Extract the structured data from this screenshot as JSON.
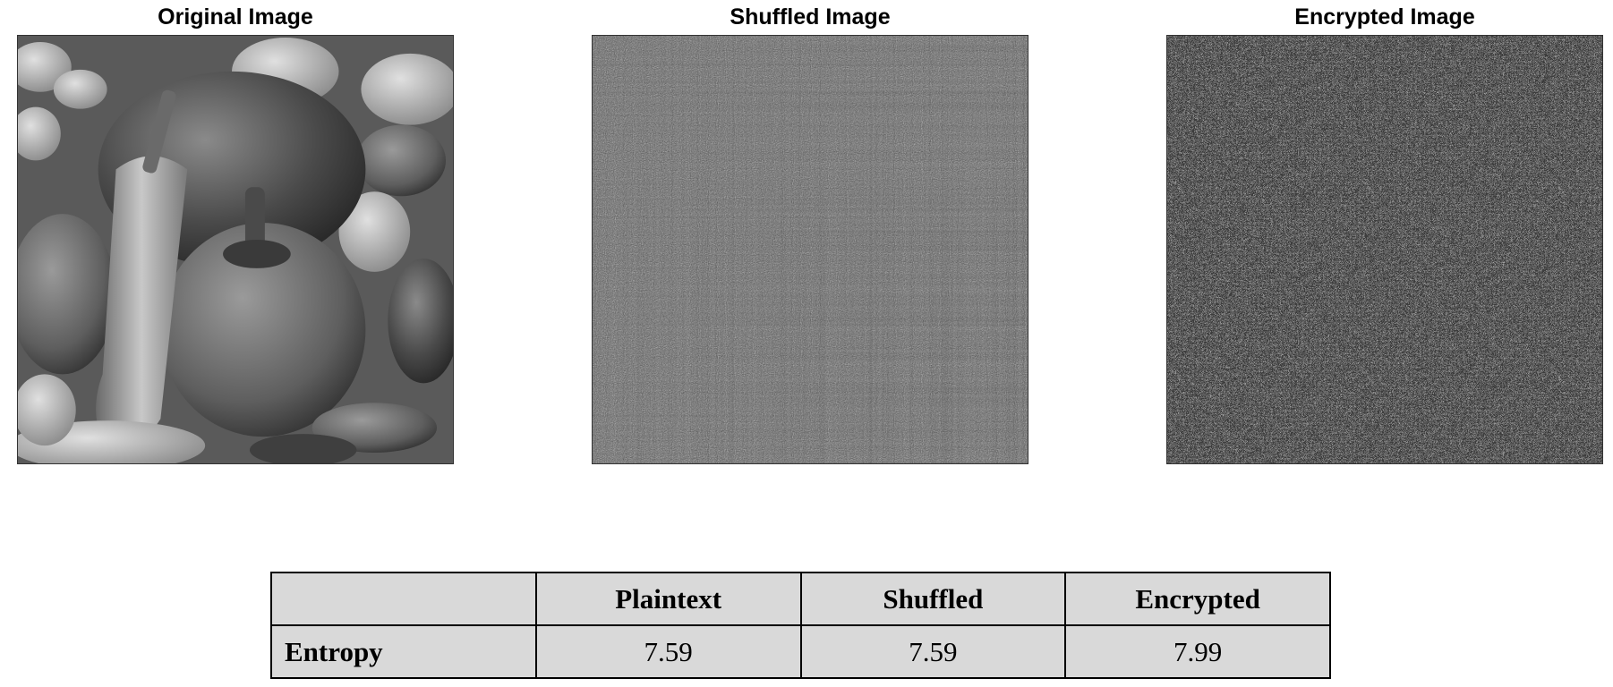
{
  "panels": {
    "original": {
      "title": "Original Image"
    },
    "shuffled": {
      "title": "Shuffled Image"
    },
    "encrypted": {
      "title": "Encrypted Image"
    }
  },
  "table": {
    "corner": "",
    "headers": [
      "Plaintext",
      "Shuffled",
      "Encrypted"
    ],
    "rows": [
      {
        "label": "Entropy",
        "values": [
          "7.59",
          "7.59",
          "7.99"
        ]
      }
    ]
  },
  "colors": {
    "table_background": "#d9d9d9",
    "border": "#000000"
  }
}
